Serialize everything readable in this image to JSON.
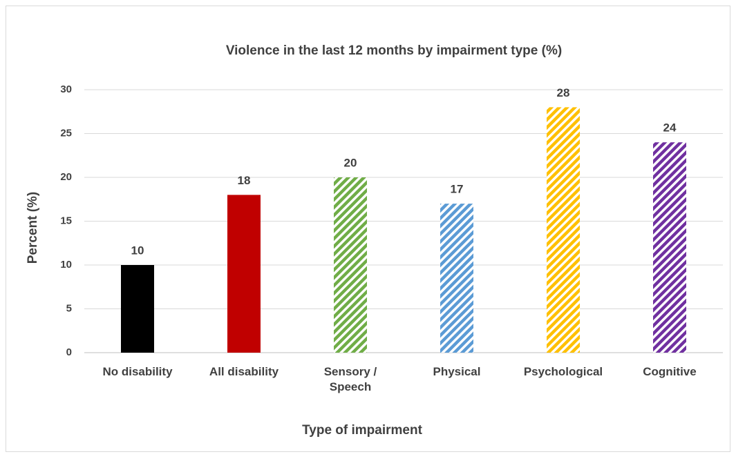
{
  "chart_data": {
    "type": "bar",
    "title": "Violence in the last 12 months by impairment type (%)",
    "x_label": "Type of impairment",
    "y_label": "Percent (%)",
    "categories": [
      "No disability",
      "All disability",
      "Sensory /\nSpeech",
      "Physical",
      "Psychological",
      "Cognitive"
    ],
    "values": [
      10,
      18,
      20,
      17,
      28,
      24
    ],
    "colors": [
      "#000000",
      "#c00000",
      "#70ad47",
      "#5b9bd5",
      "#ffc000",
      "#7030a0"
    ],
    "patterns": [
      "solid",
      "solid",
      "hatch",
      "hatch",
      "hatch",
      "hatch"
    ],
    "ylim": [
      0,
      30
    ],
    "yticks": [
      0,
      5,
      10,
      15,
      20,
      25,
      30
    ],
    "grid": true
  }
}
